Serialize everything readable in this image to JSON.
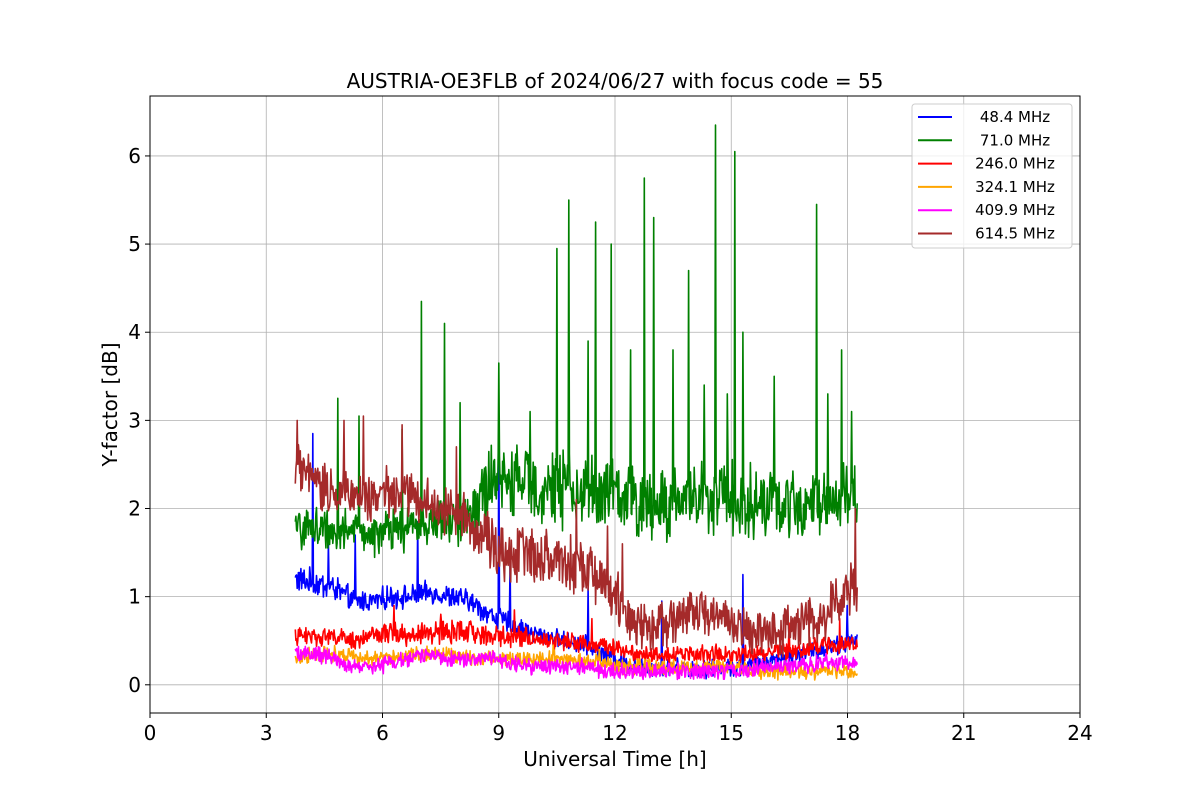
{
  "chart_data": {
    "type": "line",
    "title": "AUSTRIA-OE3FLB of 2024/06/27 with focus code = 55",
    "xlabel": "Universal Time [h]",
    "ylabel": "Y-factor [dB]",
    "xlim": [
      0,
      24
    ],
    "ylim": [
      -0.32,
      6.68
    ],
    "xticks": [
      0,
      3,
      6,
      9,
      12,
      15,
      18,
      21,
      24
    ],
    "xtick_labels": [
      "0",
      "3",
      "6",
      "9",
      "12",
      "15",
      "18",
      "21",
      "24"
    ],
    "yticks": [
      0,
      1,
      2,
      3,
      4,
      5,
      6
    ],
    "ytick_labels": [
      "0",
      "1",
      "2",
      "3",
      "4",
      "5",
      "6"
    ],
    "grid": true,
    "legend_position": "top-right",
    "x_range_data": [
      3.75,
      18.25
    ],
    "series": [
      {
        "name": "48.4 MHz",
        "color": "#0000ff",
        "x": [
          3.75,
          4.25,
          4.75,
          5.25,
          5.75,
          6.25,
          6.75,
          7.25,
          7.75,
          8.25,
          8.75,
          9.25,
          9.75,
          10.25,
          10.75,
          11.25,
          11.75,
          12.25,
          12.75,
          13.25,
          13.75,
          14.25,
          14.75,
          15.25,
          15.75,
          16.25,
          16.75,
          17.25,
          17.75,
          18.25
        ],
        "values": [
          1.2,
          1.15,
          1.1,
          0.95,
          0.95,
          1.0,
          1.0,
          1.05,
          1.0,
          0.95,
          0.8,
          0.7,
          0.6,
          0.55,
          0.5,
          0.45,
          0.35,
          0.25,
          0.2,
          0.2,
          0.2,
          0.18,
          0.2,
          0.2,
          0.25,
          0.3,
          0.35,
          0.4,
          0.45,
          0.5
        ],
        "noise": [
          0.12,
          0.12,
          0.12,
          0.1,
          0.1,
          0.1,
          0.1,
          0.1,
          0.1,
          0.1,
          0.1,
          0.1,
          0.08,
          0.08,
          0.08,
          0.08,
          0.08,
          0.08,
          0.08,
          0.08,
          0.08,
          0.08,
          0.08,
          0.08,
          0.08,
          0.08,
          0.08,
          0.08,
          0.08,
          0.1
        ],
        "spikes": [
          [
            4.2,
            2.85
          ],
          [
            4.6,
            1.6
          ],
          [
            5.3,
            1.7
          ],
          [
            6.9,
            1.85
          ],
          [
            9.0,
            2.95
          ],
          [
            9.3,
            1.4
          ],
          [
            11.3,
            1.1
          ],
          [
            13.2,
            0.95
          ],
          [
            15.3,
            1.25
          ],
          [
            18.0,
            0.9
          ]
        ]
      },
      {
        "name": "71.0 MHz",
        "color": "#008000",
        "x": [
          3.75,
          4.25,
          4.75,
          5.25,
          5.75,
          6.25,
          6.75,
          7.25,
          7.75,
          8.25,
          8.75,
          9.25,
          9.75,
          10.25,
          10.75,
          11.25,
          11.75,
          12.25,
          12.75,
          13.25,
          13.75,
          14.25,
          14.75,
          15.25,
          15.75,
          16.25,
          16.75,
          17.25,
          17.75,
          18.25
        ],
        "values": [
          1.75,
          1.8,
          1.75,
          1.75,
          1.7,
          1.75,
          1.8,
          1.85,
          1.85,
          1.9,
          2.3,
          2.3,
          2.3,
          2.25,
          2.2,
          2.2,
          2.2,
          2.1,
          2.05,
          2.05,
          2.1,
          2.15,
          2.15,
          2.1,
          2.05,
          2.05,
          2.05,
          2.1,
          2.1,
          2.15
        ],
        "noise": [
          0.18,
          0.18,
          0.18,
          0.18,
          0.18,
          0.2,
          0.2,
          0.22,
          0.22,
          0.22,
          0.3,
          0.3,
          0.32,
          0.32,
          0.32,
          0.32,
          0.32,
          0.32,
          0.32,
          0.32,
          0.32,
          0.32,
          0.32,
          0.32,
          0.3,
          0.3,
          0.3,
          0.3,
          0.3,
          0.3
        ],
        "spikes": [
          [
            4.85,
            3.25
          ],
          [
            5.4,
            3.05
          ],
          [
            6.5,
            2.9
          ],
          [
            7.0,
            4.35
          ],
          [
            7.6,
            4.1
          ],
          [
            8.0,
            3.2
          ],
          [
            9.0,
            3.65
          ],
          [
            9.8,
            3.1
          ],
          [
            10.5,
            4.95
          ],
          [
            10.8,
            5.5
          ],
          [
            11.3,
            3.9
          ],
          [
            11.5,
            5.25
          ],
          [
            11.9,
            5.0
          ],
          [
            12.4,
            3.8
          ],
          [
            12.75,
            5.75
          ],
          [
            13.0,
            5.3
          ],
          [
            13.5,
            3.8
          ],
          [
            13.9,
            4.7
          ],
          [
            14.3,
            3.4
          ],
          [
            14.6,
            6.35
          ],
          [
            14.9,
            3.3
          ],
          [
            15.1,
            6.05
          ],
          [
            15.3,
            4.0
          ],
          [
            16.1,
            3.5
          ],
          [
            17.2,
            5.45
          ],
          [
            17.5,
            3.3
          ],
          [
            17.85,
            3.8
          ],
          [
            18.1,
            3.1
          ]
        ]
      },
      {
        "name": "246.0 MHz",
        "color": "#ff0000",
        "x": [
          3.75,
          4.25,
          4.75,
          5.25,
          5.75,
          6.25,
          6.75,
          7.25,
          7.75,
          8.25,
          8.75,
          9.25,
          9.75,
          10.25,
          10.75,
          11.25,
          11.75,
          12.25,
          12.75,
          13.25,
          13.75,
          14.25,
          14.75,
          15.25,
          15.75,
          16.25,
          16.75,
          17.25,
          17.75,
          18.25
        ],
        "values": [
          0.55,
          0.55,
          0.55,
          0.5,
          0.55,
          0.6,
          0.55,
          0.6,
          0.6,
          0.6,
          0.55,
          0.55,
          0.55,
          0.5,
          0.5,
          0.45,
          0.45,
          0.4,
          0.35,
          0.35,
          0.35,
          0.35,
          0.35,
          0.35,
          0.35,
          0.4,
          0.4,
          0.45,
          0.45,
          0.45
        ],
        "noise": [
          0.08,
          0.08,
          0.08,
          0.08,
          0.08,
          0.1,
          0.1,
          0.1,
          0.1,
          0.1,
          0.09,
          0.09,
          0.09,
          0.08,
          0.08,
          0.08,
          0.08,
          0.08,
          0.08,
          0.08,
          0.08,
          0.08,
          0.08,
          0.08,
          0.08,
          0.08,
          0.08,
          0.08,
          0.08,
          0.08
        ],
        "spikes": [
          [
            6.3,
            0.9
          ],
          [
            7.5,
            0.8
          ],
          [
            9.4,
            0.85
          ],
          [
            11.4,
            0.75
          ],
          [
            16.5,
            0.7
          ],
          [
            17.8,
            0.75
          ]
        ]
      },
      {
        "name": "324.1 MHz",
        "color": "#ffa500",
        "x": [
          3.75,
          4.25,
          4.75,
          5.25,
          5.75,
          6.25,
          6.75,
          7.25,
          7.75,
          8.25,
          8.75,
          9.25,
          9.75,
          10.25,
          10.75,
          11.25,
          11.75,
          12.25,
          12.75,
          13.25,
          13.75,
          14.25,
          14.75,
          15.25,
          15.75,
          16.25,
          16.75,
          17.25,
          17.75,
          18.25
        ],
        "values": [
          0.3,
          0.35,
          0.35,
          0.35,
          0.3,
          0.3,
          0.35,
          0.35,
          0.35,
          0.3,
          0.3,
          0.3,
          0.3,
          0.3,
          0.3,
          0.25,
          0.25,
          0.2,
          0.2,
          0.2,
          0.2,
          0.2,
          0.2,
          0.2,
          0.15,
          0.15,
          0.15,
          0.15,
          0.15,
          0.15
        ],
        "noise": [
          0.07,
          0.07,
          0.07,
          0.07,
          0.07,
          0.07,
          0.07,
          0.07,
          0.07,
          0.07,
          0.07,
          0.07,
          0.07,
          0.07,
          0.07,
          0.07,
          0.07,
          0.07,
          0.07,
          0.07,
          0.07,
          0.07,
          0.07,
          0.07,
          0.07,
          0.07,
          0.07,
          0.07,
          0.07,
          0.07
        ],
        "spikes": [
          [
            10.4,
            0.45
          ],
          [
            11.6,
            0.4
          ]
        ]
      },
      {
        "name": "409.9 MHz",
        "color": "#ff00ff",
        "x": [
          3.75,
          4.25,
          4.75,
          5.25,
          5.75,
          6.25,
          6.75,
          7.25,
          7.75,
          8.25,
          8.75,
          9.25,
          9.75,
          10.25,
          10.75,
          11.25,
          11.75,
          12.25,
          12.75,
          13.25,
          13.75,
          14.25,
          14.75,
          15.25,
          15.75,
          16.25,
          16.75,
          17.25,
          17.75,
          18.25
        ],
        "values": [
          0.35,
          0.35,
          0.3,
          0.2,
          0.2,
          0.25,
          0.3,
          0.35,
          0.3,
          0.3,
          0.3,
          0.25,
          0.2,
          0.2,
          0.2,
          0.2,
          0.15,
          0.15,
          0.15,
          0.15,
          0.15,
          0.15,
          0.15,
          0.15,
          0.2,
          0.2,
          0.2,
          0.25,
          0.25,
          0.25
        ],
        "noise": [
          0.07,
          0.07,
          0.07,
          0.07,
          0.07,
          0.07,
          0.07,
          0.07,
          0.07,
          0.07,
          0.07,
          0.07,
          0.07,
          0.07,
          0.07,
          0.07,
          0.07,
          0.07,
          0.07,
          0.07,
          0.07,
          0.07,
          0.07,
          0.07,
          0.07,
          0.07,
          0.07,
          0.07,
          0.07,
          0.07
        ],
        "spikes": []
      },
      {
        "name": "614.5 MHz",
        "color": "#a52a2a",
        "x": [
          3.75,
          4.25,
          4.75,
          5.25,
          5.75,
          6.25,
          6.75,
          7.25,
          7.75,
          8.25,
          8.75,
          9.25,
          9.75,
          10.25,
          10.75,
          11.25,
          11.75,
          12.25,
          12.75,
          13.25,
          13.75,
          14.25,
          14.75,
          15.25,
          15.75,
          16.25,
          16.75,
          17.25,
          17.75,
          18.25
        ],
        "values": [
          2.45,
          2.3,
          2.2,
          2.2,
          2.1,
          2.2,
          2.15,
          2.05,
          1.95,
          1.85,
          1.6,
          1.5,
          1.5,
          1.45,
          1.4,
          1.3,
          1.15,
          0.8,
          0.65,
          0.7,
          0.8,
          0.8,
          0.75,
          0.65,
          0.6,
          0.6,
          0.65,
          0.75,
          0.9,
          1.2
        ],
        "noise": [
          0.22,
          0.22,
          0.22,
          0.22,
          0.22,
          0.22,
          0.22,
          0.22,
          0.22,
          0.22,
          0.25,
          0.25,
          0.25,
          0.25,
          0.25,
          0.25,
          0.25,
          0.25,
          0.22,
          0.22,
          0.2,
          0.2,
          0.2,
          0.2,
          0.2,
          0.2,
          0.2,
          0.22,
          0.25,
          0.3
        ],
        "spikes": [
          [
            3.8,
            3.0
          ],
          [
            5.0,
            3.0
          ],
          [
            5.5,
            3.05
          ],
          [
            6.5,
            2.95
          ],
          [
            7.9,
            2.7
          ],
          [
            11.0,
            2.1
          ],
          [
            11.8,
            1.8
          ],
          [
            12.2,
            1.6
          ],
          [
            18.2,
            2.0
          ]
        ]
      }
    ]
  }
}
